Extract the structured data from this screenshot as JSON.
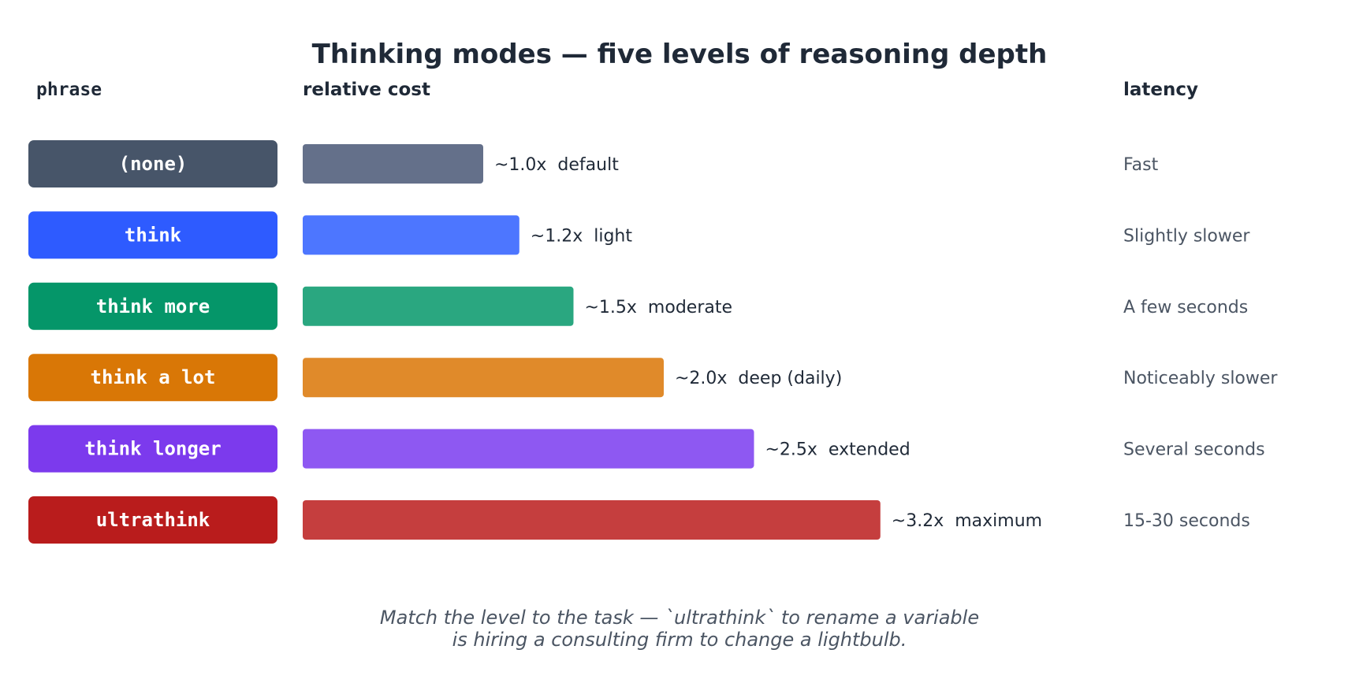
{
  "chart_data": {
    "type": "bar",
    "orientation": "horizontal",
    "title": "Thinking modes — five levels of reasoning depth",
    "column_headers": {
      "phrase": "phrase",
      "cost": "relative cost",
      "latency": "latency"
    },
    "rows": [
      {
        "phrase": "(none)",
        "value": 1.0,
        "cost_label": "~1.0x  default",
        "latency": "Fast",
        "pill_color": "#475569",
        "bar_color": "#64708a"
      },
      {
        "phrase": "think",
        "value": 1.2,
        "cost_label": "~1.2x  light",
        "latency": "Slightly slower",
        "pill_color": "#2e5bff",
        "bar_color": "#4d76ff"
      },
      {
        "phrase": "think more",
        "value": 1.5,
        "cost_label": "~1.5x  moderate",
        "latency": "A few seconds",
        "pill_color": "#059669",
        "bar_color": "#2aa780"
      },
      {
        "phrase": "think a lot",
        "value": 2.0,
        "cost_label": "~2.0x  deep (daily)",
        "latency": "Noticeably slower",
        "pill_color": "#d97706",
        "bar_color": "#e08a2a"
      },
      {
        "phrase": "think longer",
        "value": 2.5,
        "cost_label": "~2.5x  extended",
        "latency": "Several seconds",
        "pill_color": "#7c3aed",
        "bar_color": "#8e58f2"
      },
      {
        "phrase": "ultrathink",
        "value": 3.2,
        "cost_label": "~3.2x  maximum",
        "latency": "15-30 seconds",
        "pill_color": "#b91c1c",
        "bar_color": "#c53e3e"
      }
    ],
    "caption": [
      "Match the level to the task — `ultrathink` to rename a variable",
      "is hiring a consulting firm to change a lightbulb."
    ]
  }
}
